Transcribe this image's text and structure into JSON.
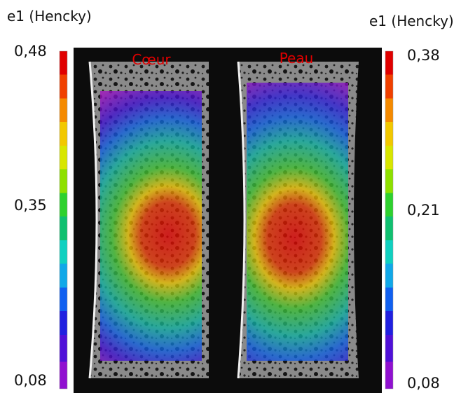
{
  "left_colorbar": {
    "title": "e1 (Hencky)",
    "labels": [
      "0,48",
      "0,35",
      "0,08"
    ]
  },
  "right_colorbar": {
    "title": "e1 (Hencky)",
    "labels": [
      "0,38",
      "0,21",
      "0,08"
    ]
  },
  "panels": [
    {
      "label": "Cœur"
    },
    {
      "label": "Peau"
    }
  ]
}
